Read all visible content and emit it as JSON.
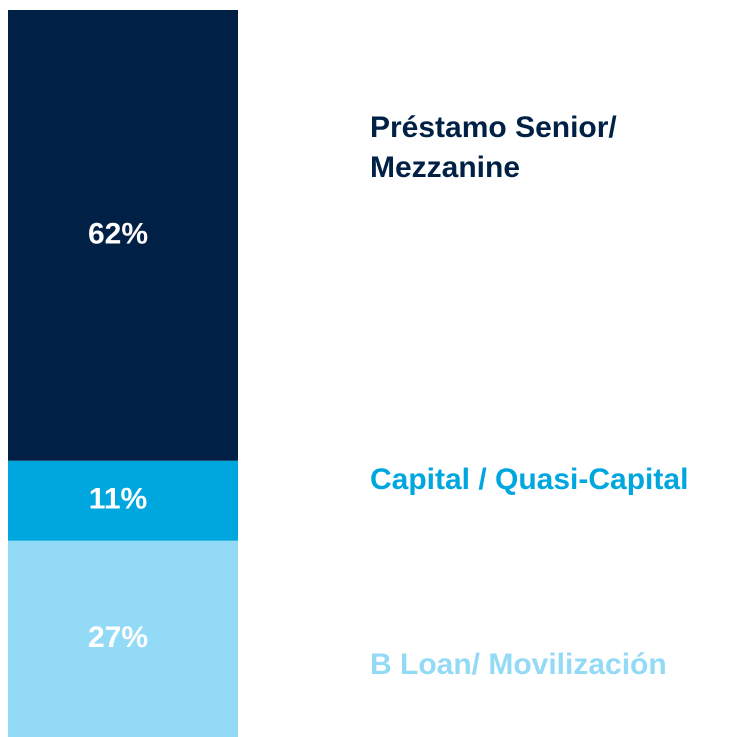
{
  "chart_data": {
    "type": "bar",
    "stacked": true,
    "ylim": [
      0,
      100
    ],
    "series": [
      {
        "name": "B Loan/ Movilización",
        "color": "#93daf6",
        "values": [
          27
        ],
        "value_labels": [
          "27%"
        ]
      },
      {
        "name": "Capital / Quasi-Capital",
        "color": "#00a7df",
        "values": [
          11
        ],
        "value_labels": [
          "11%"
        ]
      },
      {
        "name": "Préstamo Senior/ Mezzanine",
        "color": "#002145",
        "values": [
          62
        ],
        "value_labels": [
          "62%"
        ]
      }
    ]
  }
}
